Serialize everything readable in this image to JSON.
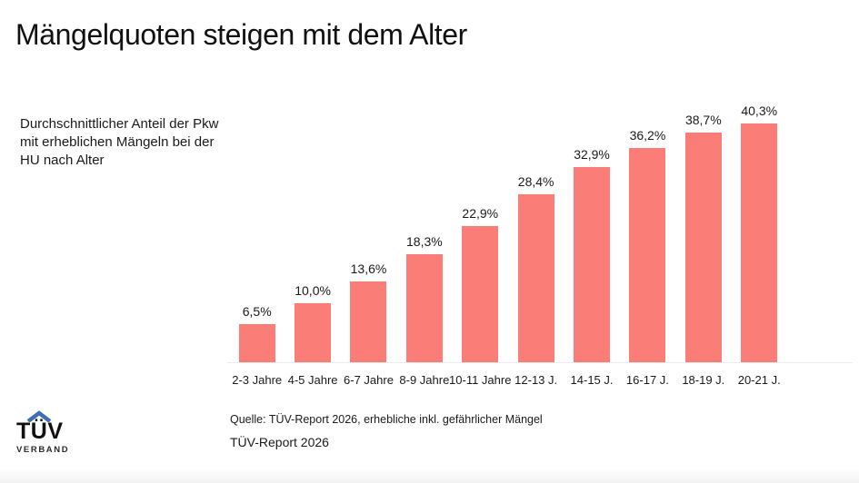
{
  "slide": {
    "title": "Mängelquoten steigen mit dem Alter",
    "subtitle": "Durchschnittlicher Anteil der Pkw\nmit erheblichen Mängeln bei der\nHU nach Alter",
    "source": "Quelle: TÜV-Report 2026, erhebliche inkl. gefährlicher Mängel",
    "report_label": "TÜV-Report 2026"
  },
  "logo": {
    "text": "TÜV",
    "subtext": "VERBAND",
    "roof_color": "#3d6fb2"
  },
  "chart_data": {
    "type": "bar",
    "title": "Mängelquoten steigen mit dem Alter",
    "categories": [
      "2-3 Jahre",
      "4-5 Jahre",
      "6-7 Jahre",
      "8-9 Jahre",
      "10-11 Jahre",
      "12-13 J.",
      "14-15 J.",
      "16-17 J.",
      "18-19 J.",
      "20-21 J."
    ],
    "values": [
      6.5,
      10.0,
      13.6,
      18.3,
      22.9,
      28.4,
      32.9,
      36.2,
      38.7,
      40.3
    ],
    "value_labels": [
      "6,5%",
      "10,0%",
      "13,6%",
      "18,3%",
      "22,9%",
      "28,4%",
      "32,9%",
      "36,2%",
      "38,7%",
      "40,3%"
    ],
    "xlabel": "",
    "ylabel": "",
    "ylim": [
      0,
      45
    ],
    "grid": false,
    "legend": false,
    "bar_color": "#fb7d77",
    "baseline_color": "#ececec"
  }
}
